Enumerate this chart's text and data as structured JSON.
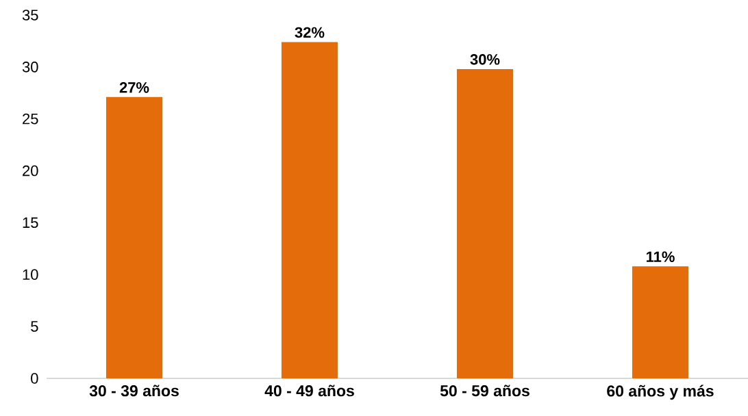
{
  "chart_data": {
    "type": "bar",
    "categories": [
      "30 - 39 años",
      "40 - 49 años",
      "50 - 59 años",
      "60 años y más"
    ],
    "values": [
      27.1,
      32.4,
      29.8,
      10.8
    ],
    "value_labels": [
      "27%",
      "32%",
      "30%",
      "11%"
    ],
    "color": "#e46c0a",
    "ylim": [
      0,
      35
    ],
    "yticks": [
      0,
      5,
      10,
      15,
      20,
      25,
      30,
      35
    ]
  }
}
